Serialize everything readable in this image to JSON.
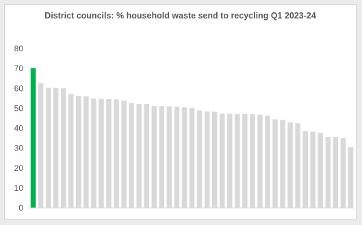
{
  "chart_data": {
    "type": "bar",
    "title": "District councils: % household waste send to recycling Q1 2023-24",
    "xlabel": "",
    "ylabel": "",
    "ylim": [
      0,
      80
    ],
    "yticks": [
      0,
      10,
      20,
      30,
      40,
      50,
      60,
      70,
      80
    ],
    "grid": false,
    "highlight_color": "#00b050",
    "bar_color": "#d9d9d9",
    "highlight_index": 0,
    "values": [
      70.2,
      62.6,
      60.3,
      60.2,
      60.0,
      57.3,
      56.2,
      56.0,
      54.9,
      54.7,
      54.6,
      54.5,
      53.8,
      52.6,
      52.2,
      52.2,
      51.1,
      51.1,
      51.0,
      50.8,
      50.5,
      50.2,
      48.9,
      48.4,
      48.3,
      47.3,
      47.3,
      47.2,
      47.2,
      47.0,
      46.8,
      46.3,
      44.5,
      44.2,
      43.0,
      42.5,
      38.5,
      38.3,
      37.8,
      35.7,
      35.6,
      35.0,
      30.5
    ]
  }
}
